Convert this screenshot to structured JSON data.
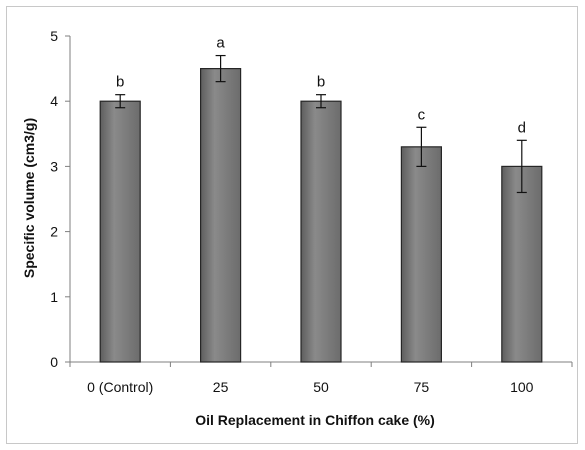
{
  "chart_data": {
    "type": "bar",
    "categories": [
      "0 (Control)",
      "25",
      "50",
      "75",
      "100"
    ],
    "values": [
      4.0,
      4.5,
      4.0,
      3.3,
      3.0
    ],
    "errors": [
      0.1,
      0.2,
      0.1,
      0.3,
      0.4
    ],
    "significance_letters": [
      "b",
      "a",
      "b",
      "c",
      "d"
    ],
    "xlabel": "Oil Replacement in Chiffon cake (%)",
    "ylabel": "Specific volume (cm3/g)",
    "ylim": [
      0,
      5
    ],
    "yticks": [
      "0",
      "1",
      "2",
      "3",
      "4",
      "5"
    ],
    "grid": false,
    "legend": "none",
    "bar_color": "#7f7f7f",
    "bar_edge_color": "#262626"
  }
}
